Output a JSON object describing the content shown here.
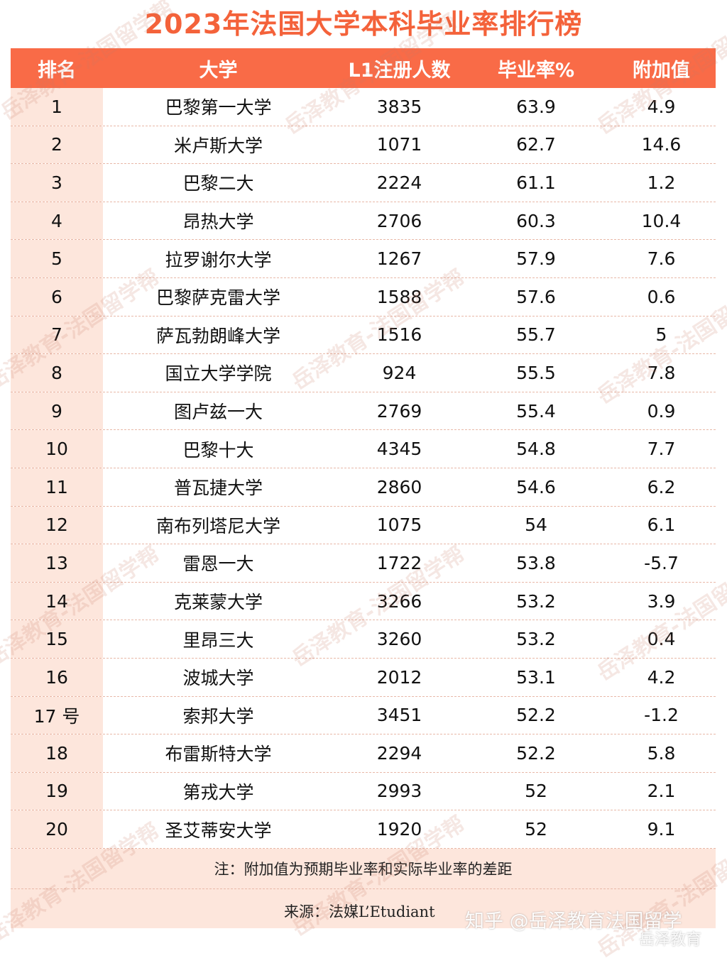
{
  "title": "2023年法国大学本科毕业率排行榜",
  "headers": {
    "rank": "排名",
    "university": "大学",
    "enrollment": "L1注册人数",
    "rate": "毕业率%",
    "added_value": "附加值"
  },
  "rows": [
    {
      "rank": "1",
      "university": "巴黎第一大学",
      "enrollment": "3835",
      "rate": "63.9",
      "added_value": "4.9"
    },
    {
      "rank": "2",
      "university": "米卢斯大学",
      "enrollment": "1071",
      "rate": "62.7",
      "added_value": "14.6"
    },
    {
      "rank": "3",
      "university": "巴黎二大",
      "enrollment": "2224",
      "rate": "61.1",
      "added_value": "1.2"
    },
    {
      "rank": "4",
      "university": "昂热大学",
      "enrollment": "2706",
      "rate": "60.3",
      "added_value": "10.4"
    },
    {
      "rank": "5",
      "university": "拉罗谢尔大学",
      "enrollment": "1267",
      "rate": "57.9",
      "added_value": "7.6"
    },
    {
      "rank": "6",
      "university": "巴黎萨克雷大学",
      "enrollment": "1588",
      "rate": "57.6",
      "added_value": "0.6"
    },
    {
      "rank": "7",
      "university": "萨瓦勃朗峰大学",
      "enrollment": "1516",
      "rate": "55.7",
      "added_value": "5"
    },
    {
      "rank": "8",
      "university": "国立大学学院",
      "enrollment": "924",
      "rate": "55.5",
      "added_value": "7.8"
    },
    {
      "rank": "9",
      "university": "图卢兹一大",
      "enrollment": "2769",
      "rate": "55.4",
      "added_value": "0.9"
    },
    {
      "rank": "10",
      "university": "巴黎十大",
      "enrollment": "4345",
      "rate": "54.8",
      "added_value": "7.7"
    },
    {
      "rank": "11",
      "university": "普瓦捷大学",
      "enrollment": "2860",
      "rate": "54.6",
      "added_value": "6.2"
    },
    {
      "rank": "12",
      "university": "南布列塔尼大学",
      "enrollment": "1075",
      "rate": "54",
      "added_value": "6.1"
    },
    {
      "rank": "13",
      "university": "雷恩一大",
      "enrollment": "1722",
      "rate": "53.8",
      "added_value": "-5.7"
    },
    {
      "rank": "14",
      "university": "克莱蒙大学",
      "enrollment": "3266",
      "rate": "53.2",
      "added_value": "3.9"
    },
    {
      "rank": "15",
      "university": "里昂三大",
      "enrollment": "3260",
      "rate": "53.2",
      "added_value": "0.4"
    },
    {
      "rank": "16",
      "university": "波城大学",
      "enrollment": "2012",
      "rate": "53.1",
      "added_value": "4.2"
    },
    {
      "rank": "17 号",
      "university": "索邦大学",
      "enrollment": "3451",
      "rate": "52.2",
      "added_value": "-1.2"
    },
    {
      "rank": "18",
      "university": "布雷斯特大学",
      "enrollment": "2294",
      "rate": "52.2",
      "added_value": "5.8"
    },
    {
      "rank": "19",
      "university": "第戎大学",
      "enrollment": "2993",
      "rate": "52",
      "added_value": "2.1"
    },
    {
      "rank": "20",
      "university": "圣艾蒂安大学",
      "enrollment": "1920",
      "rate": "52",
      "added_value": "9.1"
    }
  ],
  "note": "注：附加值为预期毕业率和实际毕业率的差距",
  "source": "来源：法媒L’Etudiant",
  "watermark": "岳泽教育-法国留学帮",
  "zhihu_mark": "知乎 @岳泽教育法国留学",
  "weibo_mark": "岳泽教育"
}
